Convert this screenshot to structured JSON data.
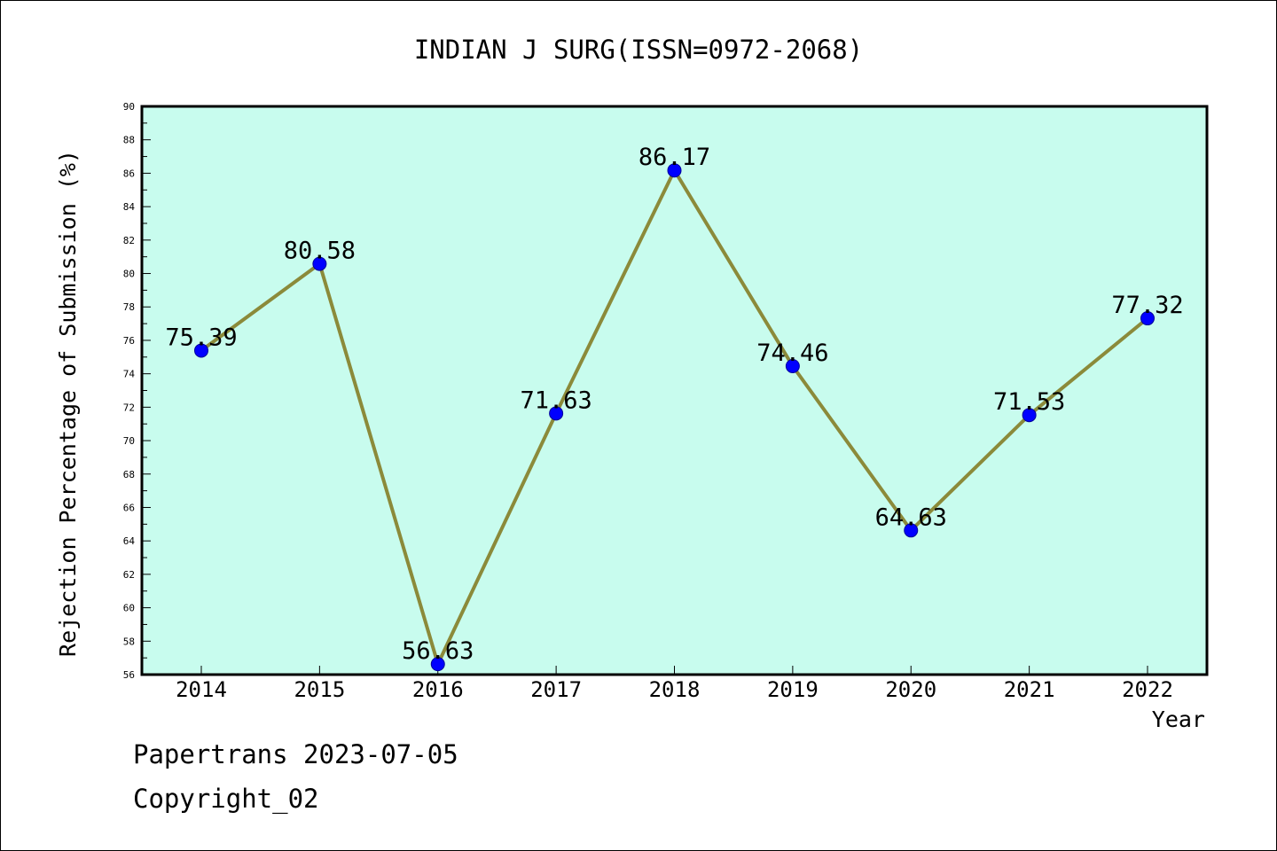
{
  "chart_data": {
    "type": "line",
    "title": "INDIAN J SURG(ISSN=0972-2068)",
    "xlabel": "Year",
    "ylabel": "Rejection Percentage of Submission (%)",
    "x": [
      "2014",
      "2015",
      "2016",
      "2017",
      "2018",
      "2019",
      "2020",
      "2021",
      "2022"
    ],
    "series": [
      {
        "values": [
          75.39,
          80.58,
          56.63,
          71.63,
          86.17,
          74.46,
          64.63,
          71.53,
          77.32
        ]
      }
    ],
    "data_labels": [
      "75.39",
      "80.58",
      "56.63",
      "71.63",
      "86.17",
      "74.46",
      "64.63",
      "71.53",
      "77.32"
    ],
    "ylim": [
      56,
      90
    ],
    "yticks": [
      "56",
      "58",
      "60",
      "62",
      "64",
      "66",
      "68",
      "70",
      "72",
      "74",
      "76",
      "78",
      "80",
      "82",
      "84",
      "86",
      "88",
      "90"
    ],
    "grid": false,
    "legend": "none",
    "colors": {
      "plot_background": "#c8fcee",
      "line": "#8b8a3a",
      "marker": "#0000ff"
    }
  },
  "footer": {
    "source": "Papertrans 2023-07-05",
    "copyright": "Copyright_02"
  }
}
